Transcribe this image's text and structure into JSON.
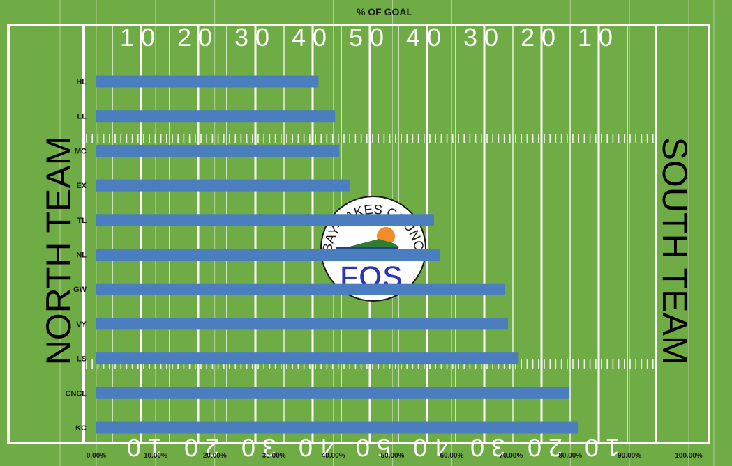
{
  "chart_data": {
    "type": "bar",
    "orientation": "horizontal",
    "title": "% OF GOAL",
    "categories": [
      "HL",
      "LL",
      "MC",
      "EX",
      "TL",
      "NL",
      "GW",
      "VY",
      "LS",
      "CNCL",
      "KC"
    ],
    "values": [
      37.5,
      40.3,
      41.0,
      42.8,
      57.0,
      58.0,
      69.0,
      69.5,
      71.3,
      79.8,
      81.4
    ],
    "value_unit": "%",
    "xlim": [
      0,
      100
    ],
    "x_ticks": [
      "0.00%",
      "10.00%",
      "20.00%",
      "30.00%",
      "40.00%",
      "50.00%",
      "60.00%",
      "70.00%",
      "80.00%",
      "90.00%",
      "100.00%"
    ],
    "grid": true,
    "bar_color": "#4a7ebf"
  },
  "field": {
    "left_label": "NORTH TEAM",
    "right_label": "SOUTH TEAM",
    "yard_numbers": [
      "10",
      "20",
      "30",
      "40",
      "50",
      "40",
      "30",
      "20",
      "10"
    ],
    "grass_color": "#6fac45",
    "line_color": "#ffffff"
  },
  "logo": {
    "council_text": "BAY-LAKES COUNCIL, BSA",
    "program_text": "FOS",
    "ring_color": "#ffffff",
    "fos_color": "#2b35b8"
  }
}
